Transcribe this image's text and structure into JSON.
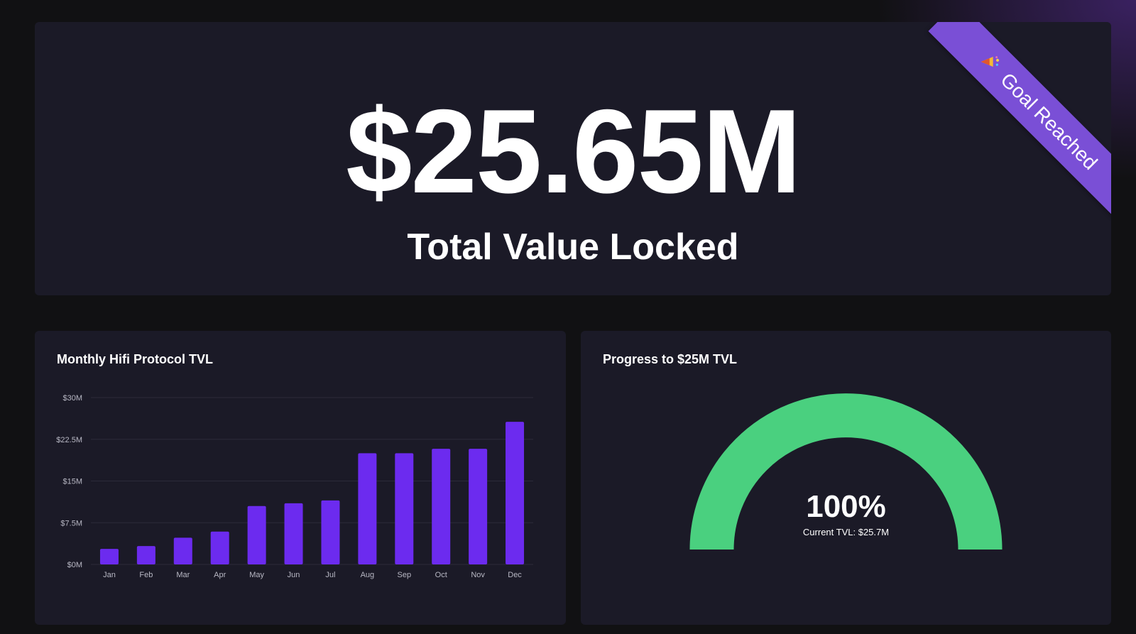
{
  "hero": {
    "value": "$25.65M",
    "label": "Total Value Locked",
    "ribbon_label": "Goal Reached",
    "ribbon_icon": "party-popper-icon",
    "ribbon_color": "#7a4fd6"
  },
  "monthly_card": {
    "title": "Monthly Hifi Protocol TVL"
  },
  "progress_card": {
    "title": "Progress to $25M TVL",
    "percent_label": "100%",
    "current_label": "Current TVL: $25.7M",
    "progress_fraction": 1.0,
    "gauge_color": "#4ad07f"
  },
  "colors": {
    "background": "#111113",
    "card": "#1b1a27",
    "bar": "#6c2bef",
    "gridline": "#2c2b3a",
    "tick_text": "#b8b8c4"
  },
  "chart_data": {
    "type": "bar",
    "title": "Monthly Hifi Protocol TVL",
    "categories": [
      "Jan",
      "Feb",
      "Mar",
      "Apr",
      "May",
      "Jun",
      "Jul",
      "Aug",
      "Sep",
      "Oct",
      "Nov",
      "Dec"
    ],
    "values": [
      2.8,
      3.3,
      4.8,
      5.9,
      10.5,
      11.0,
      11.5,
      20.0,
      20.0,
      20.8,
      20.8,
      25.65
    ],
    "unit": "$M",
    "ylim": [
      0,
      30
    ],
    "yticks": [
      0,
      7.5,
      15,
      22.5,
      30
    ],
    "ytick_labels": [
      "$0M",
      "$7.5M",
      "$15M",
      "$22.5M",
      "$30M"
    ],
    "grid": true,
    "xlabel": "",
    "ylabel": ""
  }
}
